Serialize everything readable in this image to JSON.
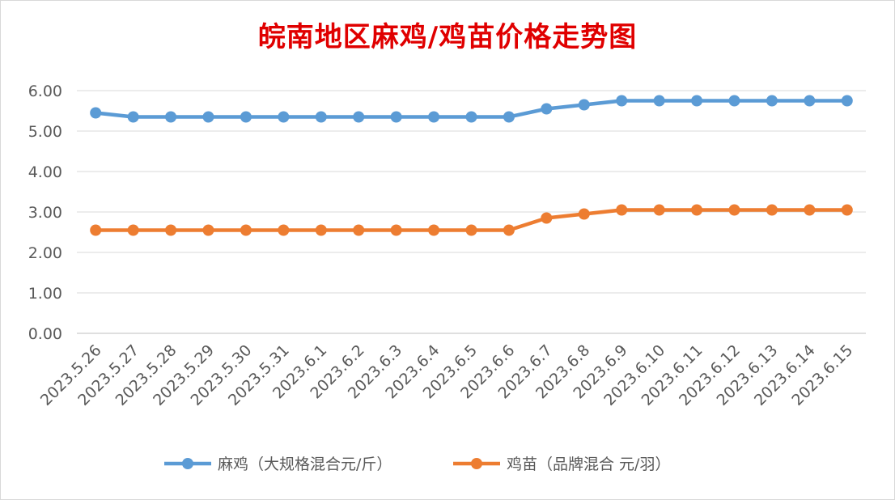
{
  "chart_data": {
    "type": "line",
    "title": "皖南地区麻鸡/鸡苗价格走势图",
    "xlabel": "",
    "ylabel": "",
    "ylim": [
      0,
      6
    ],
    "yticks": [
      "0.00",
      "1.00",
      "2.00",
      "3.00",
      "4.00",
      "5.00",
      "6.00"
    ],
    "grid": true,
    "legend_position": "bottom",
    "categories": [
      "2023.5.26",
      "2023.5.27",
      "2023.5.28",
      "2023.5.29",
      "2023.5.30",
      "2023.5.31",
      "2023.6.1",
      "2023.6.2",
      "2023.6.3",
      "2023.6.4",
      "2023.6.5",
      "2023.6.6",
      "2023.6.7",
      "2023.6.8",
      "2023.6.9",
      "2023.6.10",
      "2023.6.11",
      "2023.6.12",
      "2023.6.13",
      "2023.6.14",
      "2023.6.15"
    ],
    "series": [
      {
        "name": "麻鸡（大规格混合元/斤）",
        "color": "#5b9bd5",
        "values": [
          5.45,
          5.35,
          5.35,
          5.35,
          5.35,
          5.35,
          5.35,
          5.35,
          5.35,
          5.35,
          5.35,
          5.35,
          5.55,
          5.65,
          5.75,
          5.75,
          5.75,
          5.75,
          5.75,
          5.75,
          5.75
        ]
      },
      {
        "name": "鸡苗（品牌混合 元/羽）",
        "color": "#ed7d31",
        "values": [
          2.55,
          2.55,
          2.55,
          2.55,
          2.55,
          2.55,
          2.55,
          2.55,
          2.55,
          2.55,
          2.55,
          2.55,
          2.85,
          2.95,
          3.05,
          3.05,
          3.05,
          3.05,
          3.05,
          3.05,
          3.05
        ]
      }
    ]
  }
}
